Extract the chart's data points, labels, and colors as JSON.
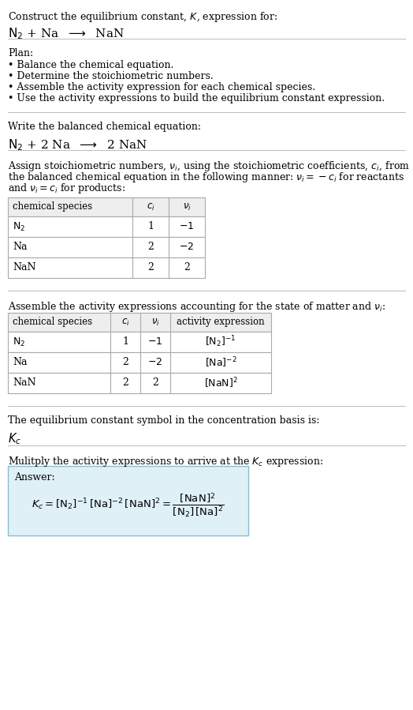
{
  "title_line1": "Construct the equilibrium constant, $K$, expression for:",
  "title_line2": "$\\mathrm{N_2}$ + Na  $\\longrightarrow$  NaN",
  "plan_header": "Plan:",
  "plan_bullets": [
    "• Balance the chemical equation.",
    "• Determine the stoichiometric numbers.",
    "• Assemble the activity expression for each chemical species.",
    "• Use the activity expressions to build the equilibrium constant expression."
  ],
  "balanced_header": "Write the balanced chemical equation:",
  "balanced_eq": "$\\mathrm{N_2}$ + 2 Na  $\\longrightarrow$  2 NaN",
  "stoich_lines": [
    "Assign stoichiometric numbers, $\\nu_i$, using the stoichiometric coefficients, $c_i$, from",
    "the balanced chemical equation in the following manner: $\\nu_i = -c_i$ for reactants",
    "and $\\nu_i = c_i$ for products:"
  ],
  "table1_headers": [
    "chemical species",
    "$c_i$",
    "$\\nu_i$"
  ],
  "table1_rows": [
    [
      "$\\mathrm{N_2}$",
      "1",
      "$-1$"
    ],
    [
      "Na",
      "2",
      "$-2$"
    ],
    [
      "NaN",
      "2",
      "2"
    ]
  ],
  "activity_header": "Assemble the activity expressions accounting for the state of matter and $\\nu_i$:",
  "table2_headers": [
    "chemical species",
    "$c_i$",
    "$\\nu_i$",
    "activity expression"
  ],
  "table2_rows": [
    [
      "$\\mathrm{N_2}$",
      "1",
      "$-1$",
      "$[\\mathrm{N_2}]^{-1}$"
    ],
    [
      "Na",
      "2",
      "$-2$",
      "$[\\mathrm{Na}]^{-2}$"
    ],
    [
      "NaN",
      "2",
      "2",
      "$[\\mathrm{NaN}]^2$"
    ]
  ],
  "Kc_text": "The equilibrium constant symbol in the concentration basis is:",
  "Kc_symbol": "$K_c$",
  "multiply_header": "Mulitply the activity expressions to arrive at the $K_c$ expression:",
  "answer_label": "Answer:",
  "answer_line1": "$K_c = [\\mathrm{N_2}]^{-1}\\,[\\mathrm{Na}]^{-2}\\,[\\mathrm{NaN}]^2 = \\dfrac{[\\mathrm{NaN}]^2}{[\\mathrm{N_2}]\\,[\\mathrm{Na}]^2}$",
  "bg_color": "#ffffff",
  "table_header_bg": "#eeeeee",
  "table_row_bg": "#ffffff",
  "answer_box_bg": "#dff0f7",
  "answer_box_border": "#8bbdd4",
  "text_color": "#000000",
  "font_size": 9.0
}
